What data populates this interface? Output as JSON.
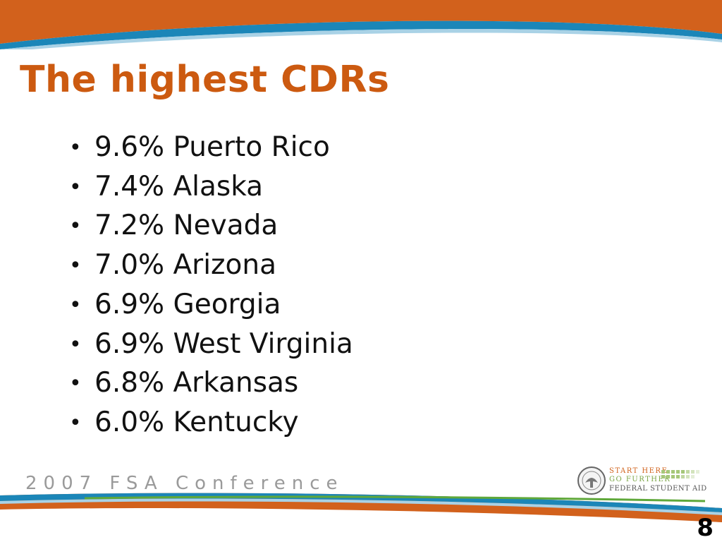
{
  "slide": {
    "title": "The highest CDRs",
    "bullets": [
      {
        "text": "9.6% Puerto Rico"
      },
      {
        "text": "7.4% Alaska"
      },
      {
        "text": "7.2% Nevada"
      },
      {
        "text": "7.0% Arizona"
      },
      {
        "text": "6.9% Georgia"
      },
      {
        "text": "6.9% West Virginia"
      },
      {
        "text": "6.8% Arkansas"
      },
      {
        "text": "6.0% Kentucky"
      }
    ],
    "bullet_glyph": "•",
    "page_number": "8"
  },
  "footer": {
    "conference": "2007 FSA Conference",
    "logo": {
      "line1": "START HERE",
      "line2": "GO FURTHER",
      "line3": "FEDERAL STUDENT AID"
    }
  },
  "colors": {
    "orange": "#cc5a10",
    "blue": "#1b86b8",
    "green": "#5fa83a",
    "title": "#cc5a10"
  }
}
